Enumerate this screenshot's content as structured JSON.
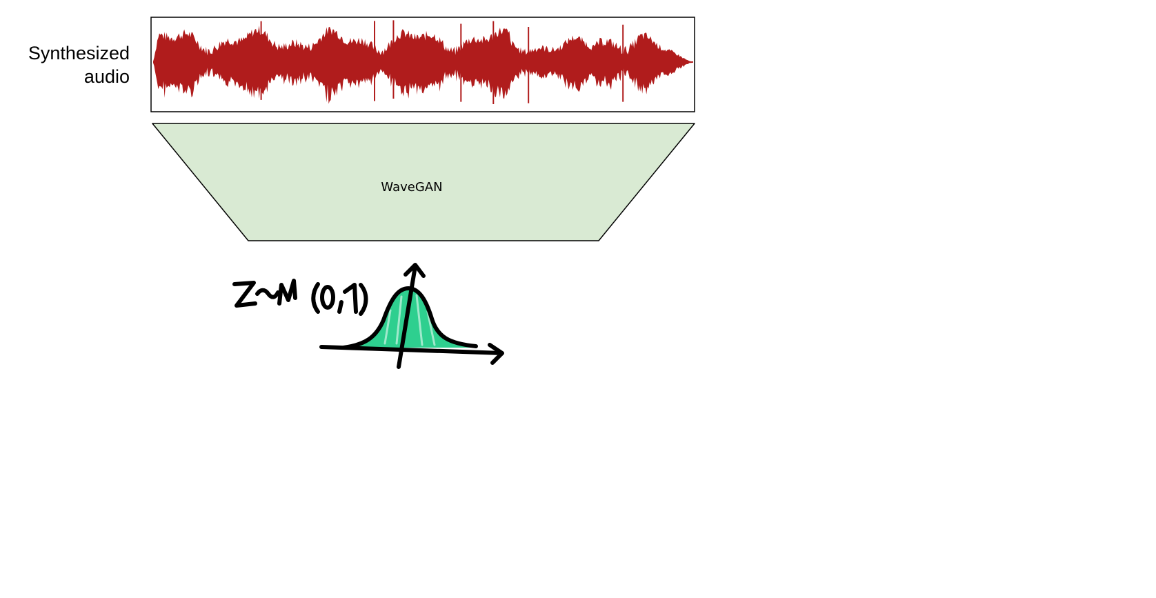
{
  "audio_label": {
    "line1": "Synthesized",
    "line2": "audio"
  },
  "model": {
    "label": "WaveGAN",
    "fill_color": "#d9ead3"
  },
  "waveform": {
    "color": "#b01c1c"
  },
  "latent": {
    "distribution_handwritten": "z~N(0,1)",
    "fill_color": "#2ecf8f",
    "ink_color": "#000000"
  }
}
